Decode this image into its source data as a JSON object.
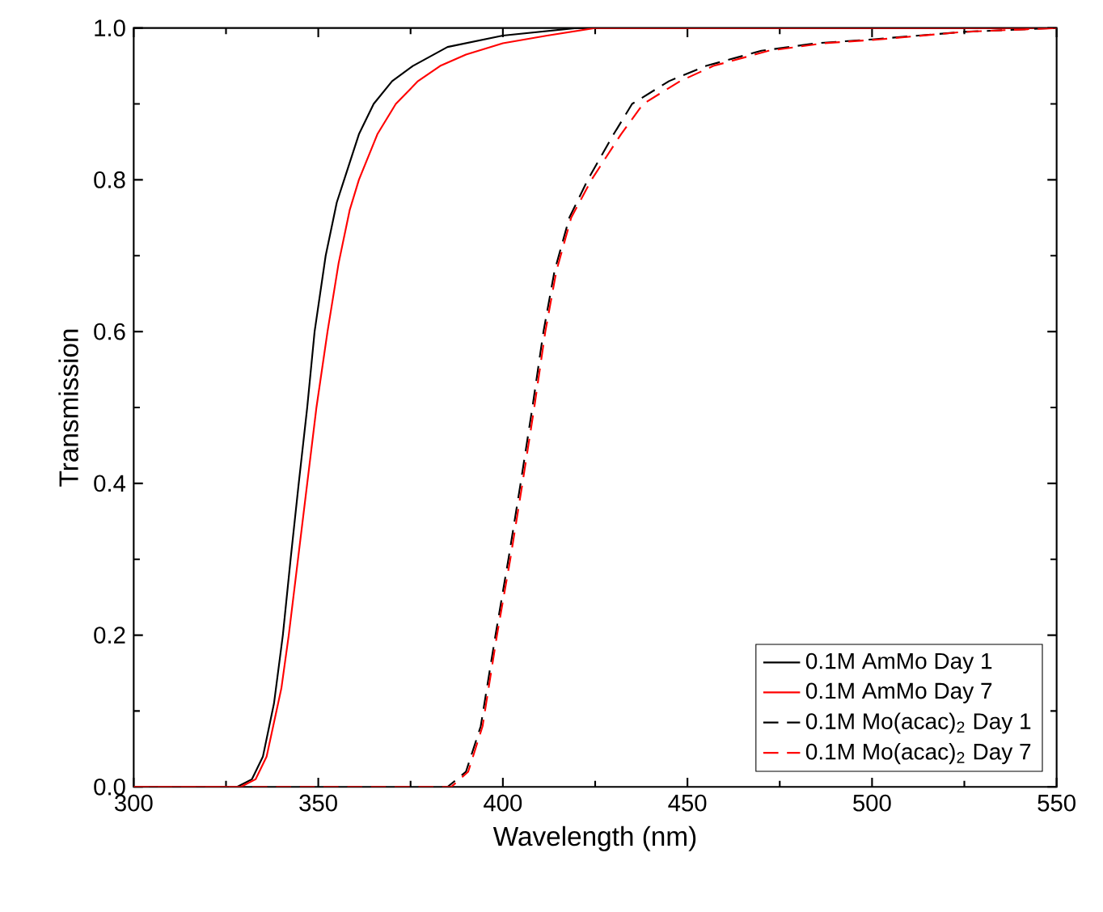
{
  "chart_data": {
    "type": "line",
    "xlabel": "Wavelength (nm)",
    "ylabel": "Transmission",
    "xlim": [
      300,
      550
    ],
    "ylim": [
      0,
      1
    ],
    "xticks": [
      300,
      350,
      400,
      450,
      500,
      550
    ],
    "yticks": [
      {
        "value": 0,
        "label": "0.0"
      },
      {
        "value": 0.2,
        "label": "0.2"
      },
      {
        "value": 0.4,
        "label": "0.4"
      },
      {
        "value": 0.6,
        "label": "0.6"
      },
      {
        "value": 0.8,
        "label": "0.8"
      },
      {
        "value": 1,
        "label": "1.0"
      }
    ],
    "legend": "bottom right",
    "grid": false,
    "series": [
      {
        "name": "0.1M AmMo Day 1",
        "color": "#000000",
        "line_style": "solid",
        "x": [
          300,
          328,
          332,
          335,
          338,
          340.4,
          342.5,
          344.7,
          347,
          349,
          352,
          355,
          357,
          361,
          365,
          370,
          375.6,
          385,
          400,
          420,
          550
        ],
        "values": [
          0,
          0,
          0.01,
          0.04,
          0.11,
          0.2,
          0.3,
          0.4,
          0.5,
          0.6,
          0.7,
          0.77,
          0.8,
          0.86,
          0.9,
          0.93,
          0.95,
          0.975,
          0.99,
          1.0,
          1.0
        ]
      },
      {
        "name": "0.1M AmMo Day 7",
        "color": "#ff0000",
        "line_style": "solid",
        "x": [
          300,
          329,
          333,
          336,
          340,
          342,
          344.5,
          347,
          349.5,
          352.5,
          355.5,
          358.5,
          361,
          366,
          371,
          377,
          383,
          390,
          400,
          412,
          425,
          550
        ],
        "values": [
          0,
          0,
          0.01,
          0.04,
          0.13,
          0.2,
          0.3,
          0.4,
          0.5,
          0.6,
          0.69,
          0.76,
          0.8,
          0.86,
          0.9,
          0.93,
          0.95,
          0.965,
          0.98,
          0.99,
          1.0,
          1.0
        ]
      },
      {
        "name": "0.1M Mo(acac)$_{2}$ Day 1",
        "color": "#000000",
        "line_style": "dashed",
        "x": [
          300,
          385,
          390,
          394,
          398,
          401.5,
          404.8,
          408,
          411,
          414,
          418,
          423,
          430,
          435,
          445,
          455,
          470,
          485,
          500,
          525,
          550
        ],
        "values": [
          0,
          0,
          0.02,
          0.08,
          0.2,
          0.3,
          0.4,
          0.5,
          0.6,
          0.68,
          0.75,
          0.8,
          0.86,
          0.9,
          0.93,
          0.95,
          0.97,
          0.98,
          0.985,
          0.995,
          1.0
        ]
      },
      {
        "name": "0.1M Mo(acac)$_{2}$ Day 7",
        "color": "#ff0000",
        "line_style": "dashed",
        "x": [
          300,
          386,
          390.6,
          394.5,
          398.4,
          402,
          405.3,
          408.5,
          411.5,
          414.5,
          418.5,
          424,
          432,
          438,
          448,
          457,
          472,
          487,
          502,
          525,
          550
        ],
        "values": [
          0,
          0,
          0.02,
          0.08,
          0.2,
          0.3,
          0.4,
          0.5,
          0.6,
          0.68,
          0.75,
          0.8,
          0.86,
          0.9,
          0.93,
          0.95,
          0.97,
          0.98,
          0.985,
          0.995,
          1.0
        ]
      }
    ]
  }
}
